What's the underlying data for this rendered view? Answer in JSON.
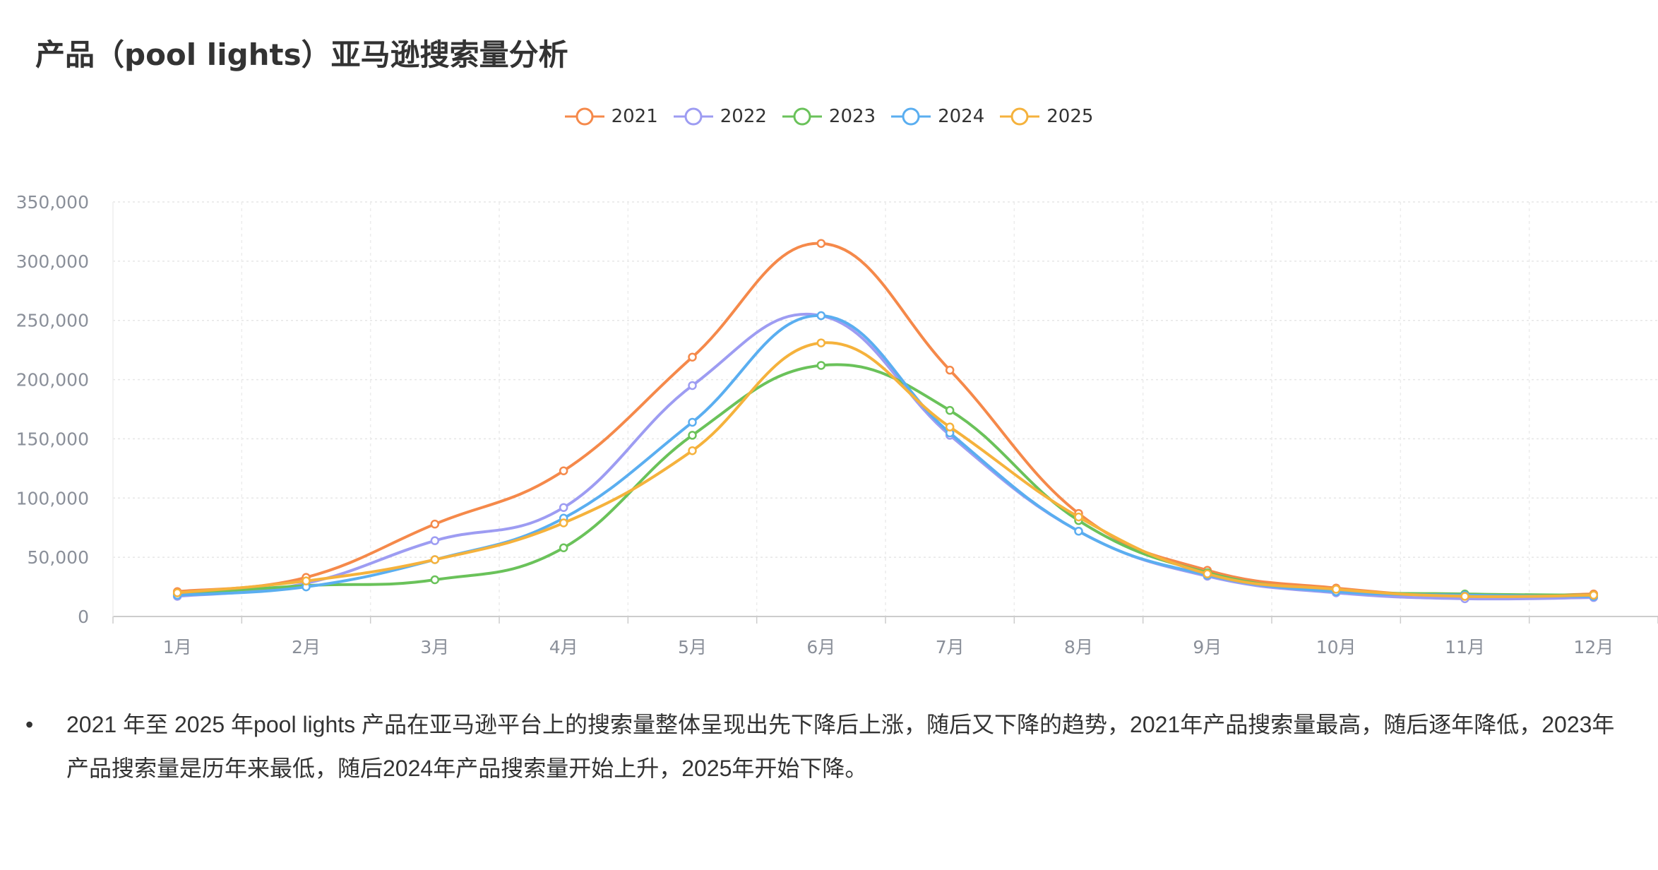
{
  "title": "产品（pool lights）亚马逊搜索量分析",
  "chart_data": {
    "type": "line",
    "smooth": true,
    "categories": [
      "1月",
      "2月",
      "3月",
      "4月",
      "5月",
      "6月",
      "7月",
      "8月",
      "9月",
      "10月",
      "11月",
      "12月"
    ],
    "ylim": [
      0,
      350000
    ],
    "yticks": [
      "0",
      "50,000",
      "100,000",
      "150,000",
      "200,000",
      "250,000",
      "300,000",
      "350,000"
    ],
    "ytick_values": [
      0,
      50000,
      100000,
      150000,
      200000,
      250000,
      300000,
      350000
    ],
    "grid": true,
    "legend_position": "top-center",
    "series": [
      {
        "name": "2021",
        "color": "#f5894a",
        "values": [
          21000,
          33000,
          78000,
          123000,
          219000,
          315000,
          208000,
          87000,
          39000,
          24000,
          17000,
          19000
        ]
      },
      {
        "name": "2022",
        "color": "#9d9cf2",
        "values": [
          17000,
          28000,
          64000,
          92000,
          195000,
          254000,
          153000,
          72000,
          34000,
          20000,
          15000,
          16000
        ]
      },
      {
        "name": "2023",
        "color": "#6ac25a",
        "values": [
          19000,
          26000,
          31000,
          58000,
          153000,
          212000,
          174000,
          81000,
          37000,
          22000,
          19000,
          18000
        ]
      },
      {
        "name": "2024",
        "color": "#5aaef0",
        "values": [
          18000,
          25000,
          48000,
          83000,
          164000,
          254000,
          155000,
          72000,
          35000,
          21000,
          18000,
          17000
        ]
      },
      {
        "name": "2025",
        "color": "#f5b23c",
        "values": [
          20000,
          30000,
          48000,
          79000,
          140000,
          231000,
          160000,
          84000,
          36000,
          23000,
          17000,
          18000
        ]
      }
    ]
  },
  "note": {
    "bullet": "•",
    "text": "2021 年至 2025 年pool lights 产品在亚马逊平台上的搜索量整体呈现出先下降后上涨，随后又下降的趋势，2021年产品搜索量最高，随后逐年降低，2023年产品搜索量是历年来最低，随后2024年产品搜索量开始上升，2025年开始下降。"
  }
}
